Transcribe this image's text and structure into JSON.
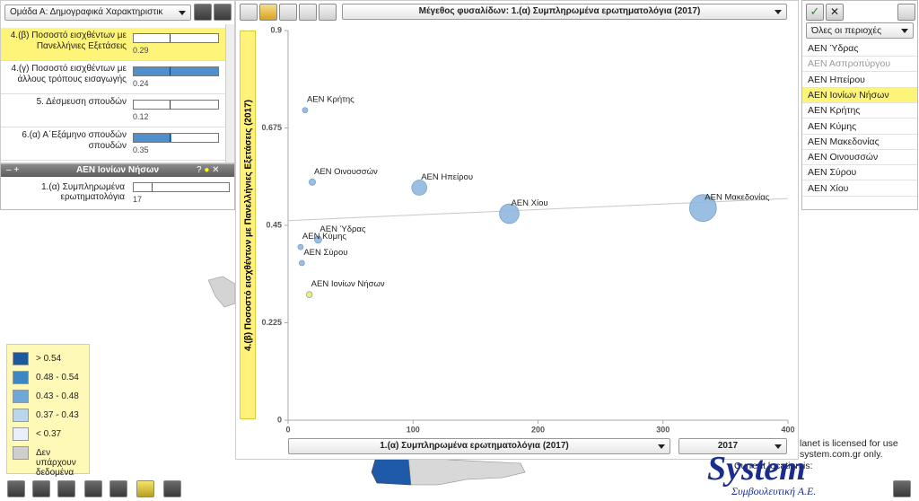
{
  "left_panel": {
    "group_select": "Ομάδα Α: Δημογραφικά Χαρακτηριστικ",
    "indicators": [
      {
        "label": "4.(β) Ποσοστό εισχθέντων με Πανελλήνιες Εξετάσεις",
        "value": 0.29
      },
      {
        "label": "4.(γ) Ποσοστό εισχθέντων με άλλους τρόπους εισαγωγής",
        "value": 0.24
      },
      {
        "label": "5. Δέσμευση σπουδών",
        "value": 0.12
      },
      {
        "label": "6.(α) Α΄Εξάμηνο σπουδών σπουδών",
        "value": 0.35
      }
    ]
  },
  "region_panel": {
    "title": "ΑΕΝ Ιονίων Νήσων",
    "rows": [
      {
        "label": "1.(α) Συμπληρωμένα ερωτηματολόγια",
        "value": 17
      }
    ]
  },
  "legend": {
    "items": [
      {
        "label": "> 0.54",
        "color": "#1c5a9e"
      },
      {
        "label": "0.48 - 0.54",
        "color": "#3f86c5"
      },
      {
        "label": "0.43 - 0.48",
        "color": "#6ea8d8"
      },
      {
        "label": "0.37 - 0.43",
        "color": "#bcd5ee"
      },
      {
        "label": "< 0.37",
        "color": "#eaf0fa"
      },
      {
        "label": "Δεν υπάρχουν δεδομένα",
        "color": "#cfcfcf"
      }
    ]
  },
  "right_panel": {
    "filter": "Όλες οι περιοχές",
    "regions": [
      "ΑΕΝ Ύδρας",
      "ΑΕΝ Ασπροπύργου",
      "ΑΕΝ Ηπείρου",
      "ΑΕΝ Ιονίων Νήσων",
      "ΑΕΝ Κρήτης",
      "ΑΕΝ Κύμης",
      "ΑΕΝ Μακεδονίας",
      "ΑΕΝ Οινουσσών",
      "ΑΕΝ Σύρου",
      "ΑΕΝ Χίου"
    ]
  },
  "chart_data": {
    "type": "scatter",
    "title": "Μέγεθος φυσαλίδων: 1.(α) Συμπληρωμένα ερωτηματολόγια (2017)",
    "y_label": "4.(β) Ποσοστό εισχθέντων με Πανελλήνιες Εξετάσεις (2017)",
    "x_label": "1.(α) Συμπληρωμένα ερωτηματολόγια  (2017)",
    "year": "2017",
    "labels": [
      "ΑΕΝ Κρήτης",
      "ΑΕΝ Οινουσσών",
      "ΑΕΝ Ηπείρου",
      "ΑΕΝ Χίου",
      "ΑΕΝ Μακεδονίας",
      "ΑΕΝ Ύδρας",
      "ΑΕΝ Κύμης",
      "ΑΕΝ Σύρου",
      "ΑΕΝ Ιονίων Νήσων"
    ],
    "x": [
      13.6,
      19.4,
      105,
      177,
      332,
      24,
      10,
      11,
      17
    ],
    "values": [
      0.716,
      0.55,
      0.537,
      0.477,
      0.49,
      0.417,
      0.4,
      0.363,
      0.29
    ],
    "colors": [
      "#8fb8e0",
      "#8fb8e0",
      "#8fb8e0",
      "#8fb8e0",
      "#8fb8e0",
      "#8fb8e0",
      "#8fb8e0",
      "#8fb8e0",
      "#f2ea6a"
    ],
    "trendline": [
      0.461,
      0.512
    ],
    "xlim": [
      0,
      400
    ],
    "ylim": [
      0,
      0.9
    ],
    "xticks": [
      0,
      100,
      200,
      300,
      400
    ],
    "yticks": [
      0,
      0.225,
      0.45,
      0.675,
      0.9
    ]
  },
  "footer": {
    "license_1": "lanet is licensed for use",
    "license_2": "system.com.gr only.",
    "location": "Current location is:",
    "logo": "System",
    "logo_sub": "Συμβουλευτική Α.Ε."
  }
}
